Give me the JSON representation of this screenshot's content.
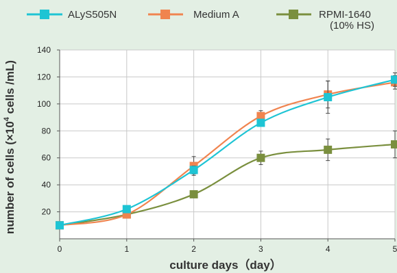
{
  "chart_data": {
    "type": "line",
    "title": "",
    "xlabel": "culture days（day）",
    "ylabel": "number of cells (×10",
    "ylabel_sup": "4",
    "ylabel_tail": " cells /mL)",
    "x": [
      0,
      1,
      2,
      3,
      4,
      5
    ],
    "x_tick_labels": [
      "0",
      "1",
      "2",
      "3",
      "4",
      "5"
    ],
    "y_tick_labels": [
      "20",
      "40",
      "60",
      "80",
      "100",
      "120",
      "140"
    ],
    "xlim": [
      0,
      5
    ],
    "ylim": [
      0,
      140
    ],
    "grid": true,
    "legend_position": "top",
    "series": [
      {
        "name": "ALyS505N",
        "name_line2": "",
        "color": "#1ec4d4",
        "values": [
          10,
          22,
          51,
          86,
          105,
          118
        ],
        "errors": [
          0,
          0,
          3,
          0,
          12,
          5
        ]
      },
      {
        "name": "Medium A",
        "name_line2": "",
        "color": "#f0844f",
        "values": [
          10,
          18,
          54,
          91,
          107,
          116
        ],
        "errors": [
          0,
          0,
          7,
          4,
          10,
          5
        ]
      },
      {
        "name": "RPMI-1640",
        "name_line2": "(10% HS)",
        "color": "#7a8f3e",
        "values": [
          10,
          18,
          33,
          60,
          66,
          70
        ],
        "errors": [
          0,
          0,
          2,
          5,
          8,
          10
        ]
      }
    ]
  }
}
